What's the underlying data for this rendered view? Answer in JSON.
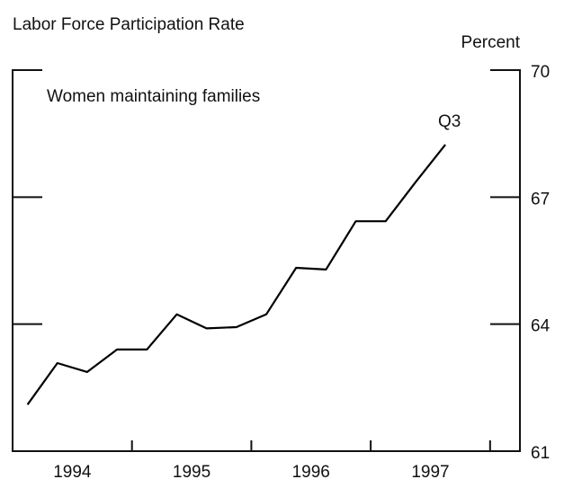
{
  "chart_data": {
    "type": "line",
    "title": "Labor Force Participation Rate",
    "y_label": "Percent",
    "annotations": [
      "Women maintaining families",
      "Q3"
    ],
    "x": [
      1994.125,
      1994.375,
      1994.625,
      1994.875,
      1995.125,
      1995.375,
      1995.625,
      1995.875,
      1996.125,
      1996.375,
      1996.625,
      1996.875,
      1997.125,
      1997.375,
      1997.625
    ],
    "series": [
      {
        "name": "Women maintaining families",
        "color": "#000000",
        "values": [
          62.1,
          63.08,
          62.87,
          63.4,
          63.4,
          64.23,
          63.9,
          63.93,
          64.23,
          65.33,
          65.29,
          66.43,
          66.43,
          67.35,
          68.24
        ]
      }
    ],
    "xlim": [
      1994,
      1998.25
    ],
    "xticks": [
      {
        "value": 1994.5,
        "label": "1994"
      },
      {
        "value": 1995.5,
        "label": "1995"
      },
      {
        "value": 1996.5,
        "label": "1996"
      },
      {
        "value": 1997.5,
        "label": "1997"
      }
    ],
    "ylim": [
      61,
      70
    ],
    "yticks": [
      61,
      64,
      67,
      70
    ],
    "y_axis_side": "right"
  }
}
